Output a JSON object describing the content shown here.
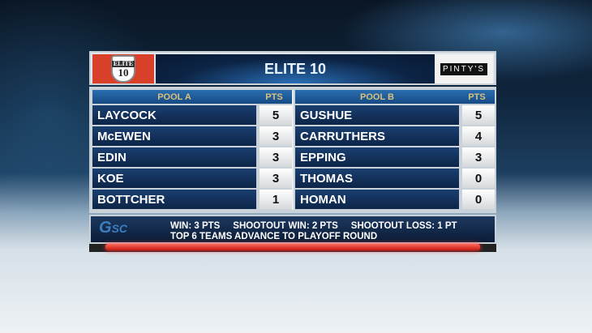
{
  "header": {
    "title": "ELITE 10",
    "left_logo": "ELITE 10",
    "sponsor_logo": "PINTY'S"
  },
  "pool_a": {
    "label": "POOL A",
    "pts_label": "PTS",
    "teams": [
      {
        "name": "LAYCOCK",
        "pts": "5"
      },
      {
        "name": "McEWEN",
        "pts": "3"
      },
      {
        "name": "EDIN",
        "pts": "3"
      },
      {
        "name": "KOE",
        "pts": "3"
      },
      {
        "name": "BOTTCHER",
        "pts": "1"
      }
    ]
  },
  "pool_b": {
    "label": "POOL B",
    "pts_label": "PTS",
    "teams": [
      {
        "name": "GUSHUE",
        "pts": "5"
      },
      {
        "name": "CARRUTHERS",
        "pts": "4"
      },
      {
        "name": "EPPING",
        "pts": "3"
      },
      {
        "name": "THOMAS",
        "pts": "0"
      },
      {
        "name": "HOMAN",
        "pts": "0"
      }
    ]
  },
  "footer": {
    "logo": "GSC",
    "line1": "WIN: 3 PTS     SHOOTOUT WIN: 2 PTS     SHOOTOUT LOSS: 1 PT",
    "line2": "TOP 6 TEAMS ADVANCE TO PLAYOFF ROUND"
  },
  "colors": {
    "accent_red": "#d9402a",
    "header_gold": "#d8c27a",
    "row_blue": "#143561"
  }
}
